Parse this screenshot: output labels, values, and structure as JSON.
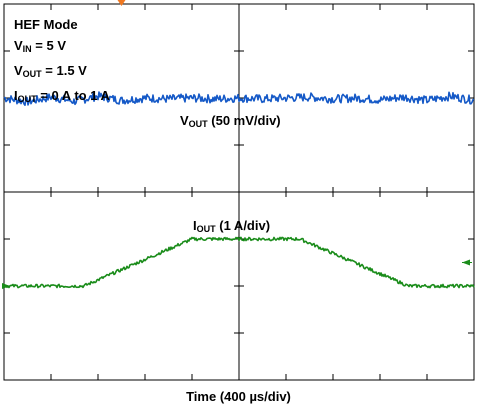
{
  "annotations": {
    "mode": "HEF Mode",
    "vin": {
      "symbol": "V",
      "sub": "IN",
      "text": " = 5 V"
    },
    "vout": {
      "symbol": "V",
      "sub": "OUT",
      "text": " = 1.5 V"
    },
    "iout": {
      "symbol": "I",
      "sub": "OUT",
      "text": " = 0 A to 1 A"
    }
  },
  "channel_labels": {
    "vout": {
      "symbol": "V",
      "sub": "OUT",
      "text": " (50 mV/div)"
    },
    "iout": {
      "symbol": "I",
      "sub": "OUT",
      "text": " (1 A/div)"
    }
  },
  "colors": {
    "background": "#ffffff",
    "grid": "#000000",
    "vout_trace": "#1559c7",
    "iout_trace": "#1a8c1a",
    "trigger_marker": "#f07820"
  },
  "chart_data": {
    "type": "line",
    "title": "",
    "xlabel": "Time (400 µs/div)",
    "ylabel": "",
    "x_unit": "div",
    "y_unit": "div",
    "xlim": [
      0,
      10
    ],
    "ylim": [
      -4,
      4
    ],
    "grid": true,
    "series": [
      {
        "name": "VOUT (50 mV/div)",
        "x": [
          0,
          0.5,
          1,
          1.5,
          2,
          2.5,
          3,
          3.5,
          4,
          4.5,
          5,
          5.5,
          6,
          6.5,
          7,
          7.5,
          8,
          8.5,
          9,
          9.5,
          10
        ],
        "y": [
          2.0,
          1.92,
          2.02,
          1.93,
          2.04,
          1.95,
          2.0,
          1.98,
          2.0,
          1.98,
          2.0,
          1.98,
          2.0,
          2.02,
          1.98,
          2.0,
          1.96,
          2.02,
          1.95,
          2.04,
          1.95
        ]
      },
      {
        "name": "IOUT (1 A/div)",
        "x": [
          0,
          1,
          1.7,
          4,
          6.3,
          8.6,
          10
        ],
        "y": [
          -2.0,
          -2.0,
          -2.0,
          -1.0,
          -1.0,
          -2.0,
          -2.0
        ]
      }
    ]
  }
}
